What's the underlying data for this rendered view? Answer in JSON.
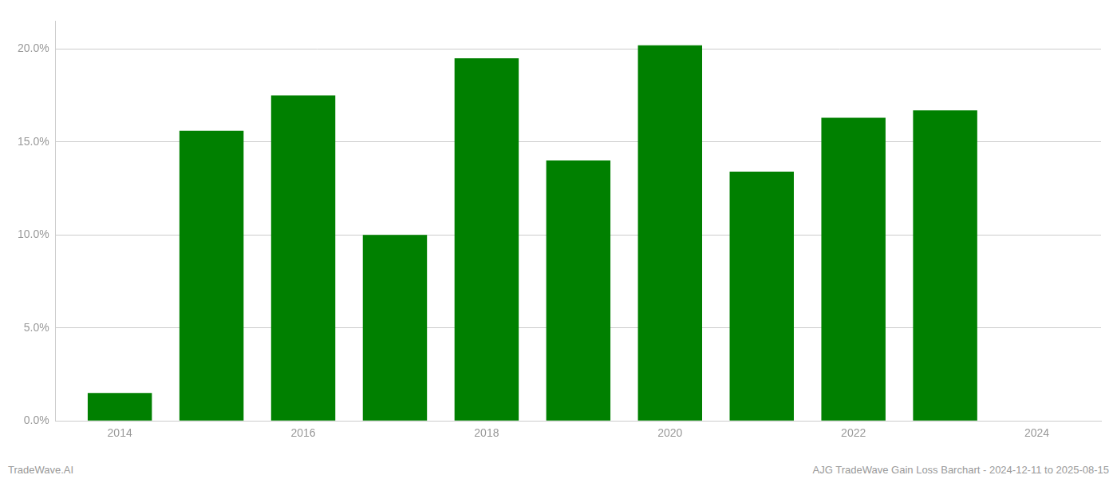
{
  "chart_data": {
    "type": "bar",
    "x": [
      2014,
      2015,
      2016,
      2017,
      2018,
      2019,
      2020,
      2021,
      2022,
      2023
    ],
    "values": [
      0.015,
      0.156,
      0.175,
      0.1,
      0.195,
      0.14,
      0.202,
      0.134,
      0.163,
      0.167
    ],
    "color": "#008000",
    "xlim": [
      2013.3,
      2024.7
    ],
    "xticks": [
      2014,
      2016,
      2018,
      2020,
      2022,
      2024
    ],
    "ylim": [
      0,
      0.215
    ],
    "yticks": [
      {
        "value": 0.0,
        "label": "0.0%"
      },
      {
        "value": 0.05,
        "label": "5.0%"
      },
      {
        "value": 0.1,
        "label": "10.0%"
      },
      {
        "value": 0.15,
        "label": "15.0%"
      },
      {
        "value": 0.2,
        "label": "20.0%"
      }
    ],
    "grid": "y",
    "annotations": [
      "TradeWave.AI",
      "AJG TradeWave Gain Loss Barchart - 2024-12-11 to 2025-08-15"
    ]
  }
}
